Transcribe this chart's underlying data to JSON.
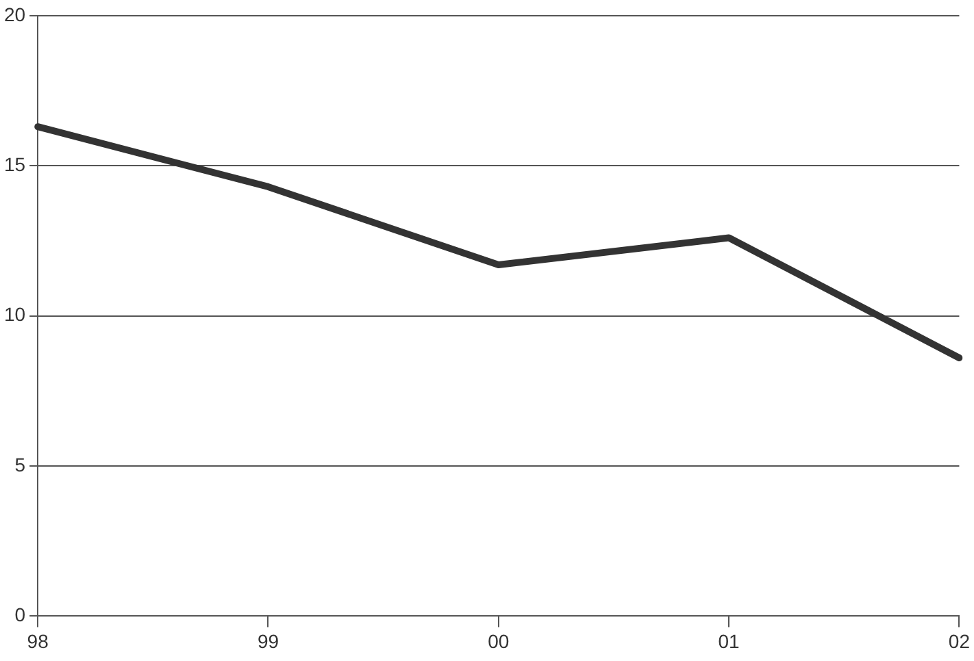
{
  "chart_data": {
    "type": "line",
    "categories": [
      "98",
      "99",
      "00",
      "01",
      "02"
    ],
    "series": [
      {
        "color": "#333333",
        "values": [
          16.3,
          14.3,
          11.7,
          12.6,
          8.6
        ]
      }
    ],
    "ylim": [
      0,
      20
    ],
    "yticks": [
      0,
      5,
      10,
      15,
      20
    ],
    "grid": "y",
    "legend": false,
    "marker": "none",
    "line_style": "solid"
  }
}
